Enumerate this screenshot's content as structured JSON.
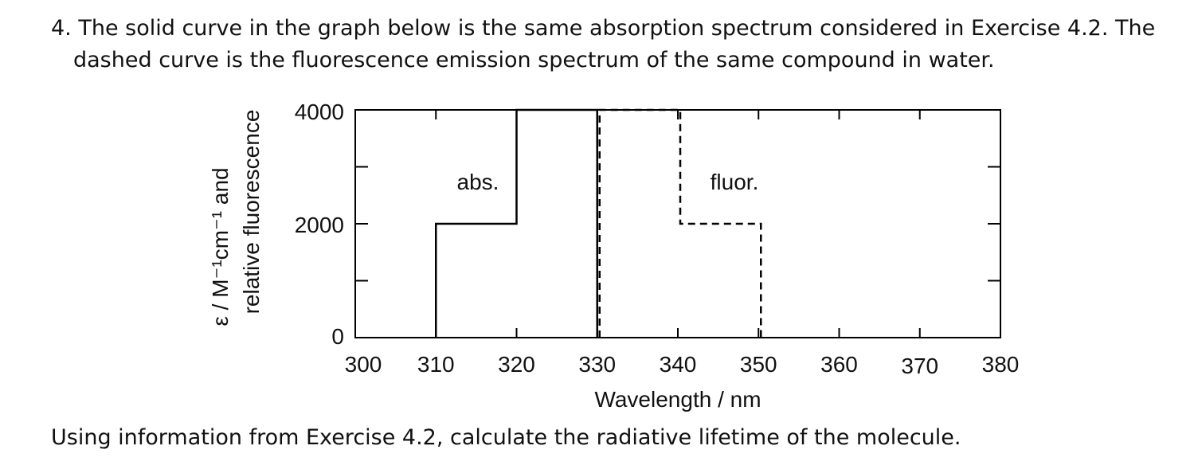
{
  "question": {
    "line1": "4. The solid curve in the graph below is the same absorption spectrum considered in Exercise 4.2. The",
    "line2": "dashed curve is the fluorescence emission spectrum of the same compound in water.",
    "line3": "Using information from Exercise 4.2, calculate the radiative lifetime of the molecule."
  },
  "chart_data": {
    "type": "line",
    "xlabel": "Wavelength / nm",
    "ylabel_line1": "relative fluorescence",
    "ylabel_line2": "ε / M⁻¹cm⁻¹ and",
    "xlim": [
      300,
      380
    ],
    "ylim": [
      0,
      4000
    ],
    "x_ticks": [
      "300",
      "310",
      "320",
      "330",
      "340",
      "350",
      "360",
      "370",
      "380"
    ],
    "y_ticks": [
      "0",
      "2000",
      "4000"
    ],
    "grid": false,
    "series": [
      {
        "name": "abs.",
        "style": "solid",
        "x": [
          310,
          310,
          320,
          320,
          330,
          330
        ],
        "y": [
          0,
          2000,
          2000,
          4000,
          4000,
          0
        ]
      },
      {
        "name": "fluor.",
        "style": "dashed",
        "x": [
          330,
          330,
          340,
          340,
          350,
          350
        ],
        "y": [
          0,
          4000,
          4000,
          2000,
          2000,
          0
        ]
      }
    ]
  }
}
